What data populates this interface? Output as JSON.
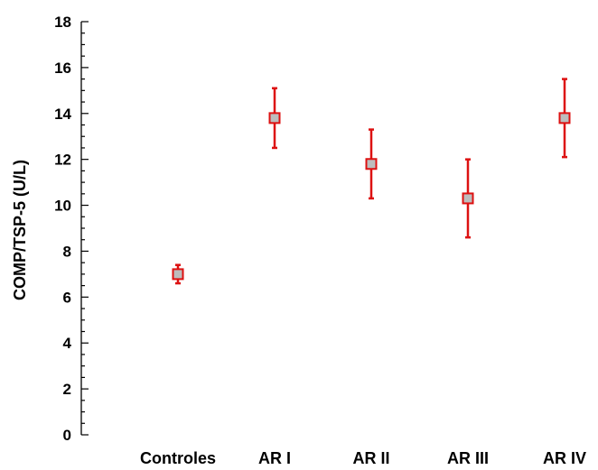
{
  "chart_data": {
    "type": "scatter",
    "title": "",
    "xlabel": "",
    "ylabel": "COMP/TSP-5 (U/L)",
    "ylim": [
      0,
      18
    ],
    "yticks": [
      0,
      2,
      4,
      6,
      8,
      10,
      12,
      14,
      16,
      18
    ],
    "y_minor_step": 0.5,
    "categories": [
      "Controles",
      "AR I",
      "AR II",
      "AR III",
      "AR IV"
    ],
    "series": [
      {
        "values": [
          7.0,
          13.8,
          11.8,
          10.3,
          13.8
        ],
        "error_low": [
          6.6,
          12.5,
          10.3,
          8.6,
          12.1
        ],
        "error_high": [
          7.4,
          15.1,
          13.3,
          12.0,
          15.5
        ]
      }
    ],
    "marker_fill": "#bdbdbd",
    "marker_color": "#dd1111",
    "grid": false,
    "legend": "none"
  }
}
